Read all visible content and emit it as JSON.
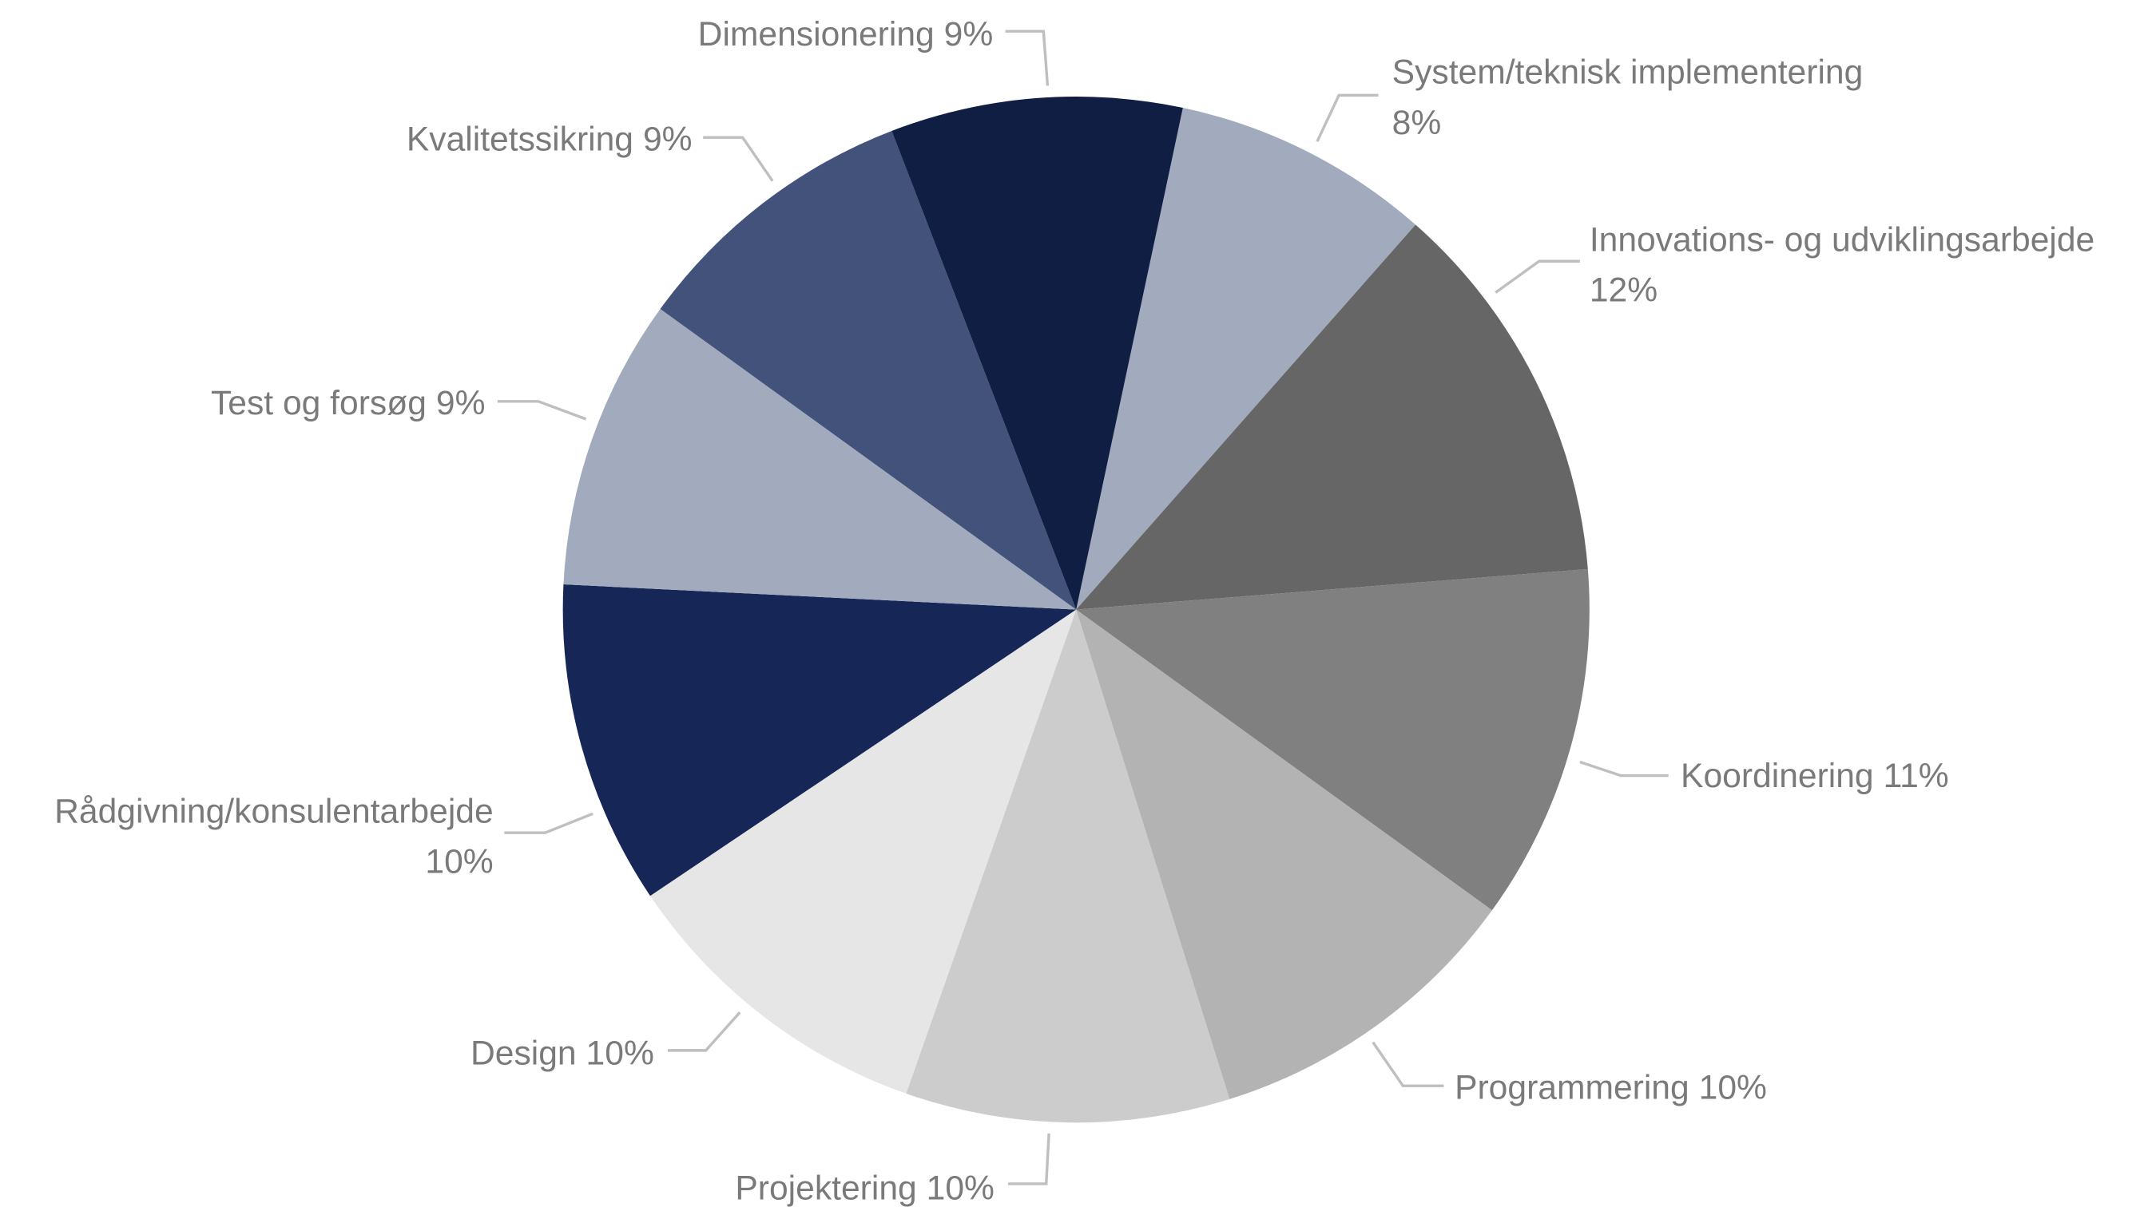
{
  "chart_data": {
    "type": "pie",
    "categories": [
      "System/teknisk implementering",
      "Innovations- og udviklingsarbejde",
      "Koordinering",
      "Programmering",
      "Projektering",
      "Design",
      "Rådgivning/konsulentarbejde",
      "Test og forsøg",
      "Kvalitetssikring",
      "Dimensionering"
    ],
    "values": [
      8,
      12,
      11,
      10,
      10,
      10,
      10,
      9,
      9,
      9
    ],
    "value_labels": [
      "8%",
      "12%",
      "11%",
      "10%",
      "10%",
      "10%",
      "10%",
      "9%",
      "9%",
      "9%"
    ],
    "colors": [
      "#a2aabd",
      "#666666",
      "#808080",
      "#b3b3b3",
      "#cccccc",
      "#e6e6e6",
      "#152657",
      "#a2aabd",
      "#43527a",
      "#101e44"
    ]
  }
}
